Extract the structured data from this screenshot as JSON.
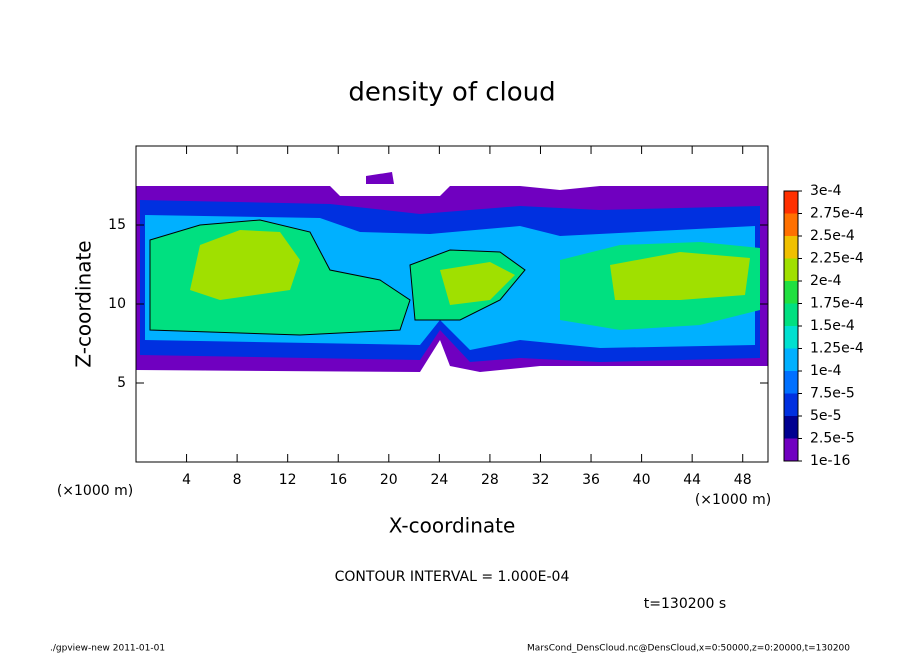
{
  "chart_data": {
    "type": "contour",
    "title": "density of cloud",
    "xlabel": "X-coordinate",
    "ylabel": "Z-coordinate",
    "x_unit": "(×1000 m)",
    "y_unit": "(×1000 m)",
    "xlim": [
      0,
      50
    ],
    "xticks": [
      4,
      8,
      12,
      16,
      20,
      24,
      28,
      32,
      36,
      40,
      44,
      48
    ],
    "ylim": [
      0,
      20
    ],
    "yticks": [
      5,
      10,
      15
    ],
    "colorbar_ticks": [
      {
        "value": 1e-16,
        "label": "1e-16"
      },
      {
        "value": 2.5e-05,
        "label": "2.5e-5"
      },
      {
        "value": 5e-05,
        "label": "5e-5"
      },
      {
        "value": 7.5e-05,
        "label": "7.5e-5"
      },
      {
        "value": 0.0001,
        "label": "1e-4"
      },
      {
        "value": 0.000125,
        "label": "1.25e-4"
      },
      {
        "value": 0.00015,
        "label": "1.5e-4"
      },
      {
        "value": 0.000175,
        "label": "1.75e-4"
      },
      {
        "value": 0.0002,
        "label": "2e-4"
      },
      {
        "value": 0.000225,
        "label": "2.25e-4"
      },
      {
        "value": 0.00025,
        "label": "2.5e-4"
      },
      {
        "value": 0.000275,
        "label": "2.75e-4"
      },
      {
        "value": 0.0003,
        "label": "3e-4"
      }
    ],
    "colorbar_colors": [
      "#7000c0",
      "#000090",
      "#0030e0",
      "#0070ff",
      "#00b0ff",
      "#00e0d0",
      "#00e080",
      "#20e040",
      "#a0e000",
      "#f0c000",
      "#ff7000",
      "#ff3000"
    ],
    "contour_interval": "CONTOUR INTERVAL = 1.000E-04",
    "time": "t=130200 s",
    "footer_left": "./gpview-new  2011-01-01",
    "footer_right": "MarsCond_DensCloud.nc@DensCloud,x=0:50000,z=0:20000,t=130200"
  }
}
